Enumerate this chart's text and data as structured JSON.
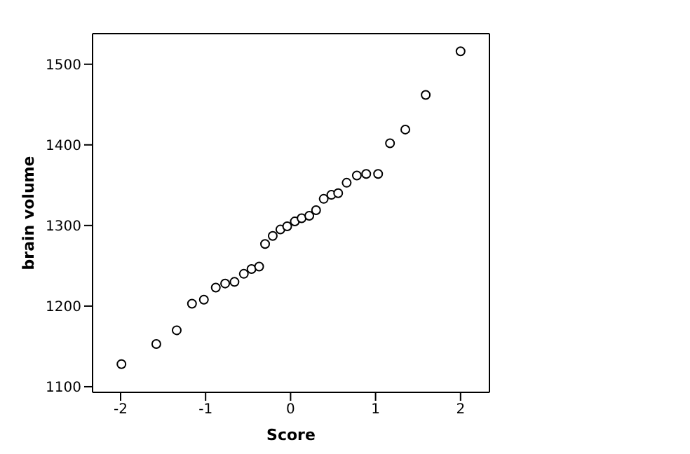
{
  "chart_data": {
    "type": "scatter",
    "xlabel": "Score",
    "ylabel": "brain volume",
    "marker": "circle",
    "grid": false,
    "xlim": [
      -2.33,
      2.34
    ],
    "ylim": [
      1093,
      1538
    ],
    "xticks": [
      -2,
      -1,
      0,
      1,
      2
    ],
    "yticks": [
      1100,
      1200,
      1300,
      1400,
      1500
    ],
    "series": [
      {
        "color": "#000000",
        "x": [
          -1.99,
          -1.58,
          -1.34,
          -1.16,
          -1.02,
          -0.88,
          -0.77,
          -0.66,
          -0.55,
          -0.46,
          -0.37,
          -0.3,
          -0.21,
          -0.12,
          -0.04,
          0.05,
          0.13,
          0.22,
          0.3,
          0.39,
          0.48,
          0.56,
          0.66,
          0.78,
          0.89,
          1.03,
          1.17,
          1.35,
          1.59,
          2.0
        ],
        "values": [
          1128,
          1153,
          1170,
          1203,
          1208,
          1223,
          1228,
          1230,
          1240,
          1246,
          1249,
          1277,
          1287,
          1295,
          1299,
          1305,
          1309,
          1312,
          1319,
          1333,
          1338,
          1340,
          1353,
          1362,
          1364,
          1364,
          1402,
          1419,
          1462,
          1516
        ]
      }
    ]
  }
}
